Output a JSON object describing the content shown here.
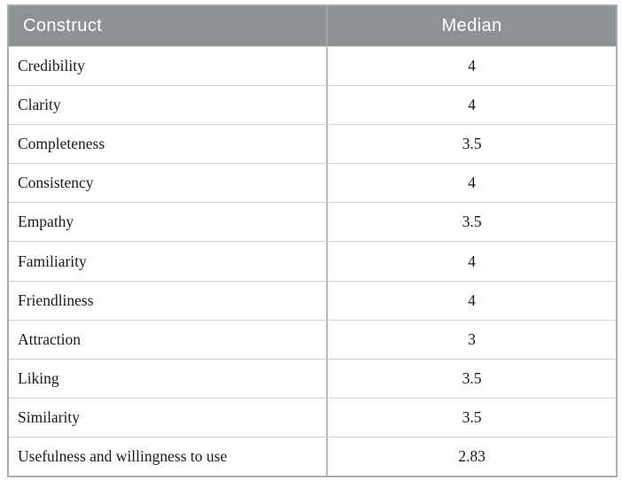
{
  "table": {
    "columns": [
      {
        "key": "construct",
        "label": "Construct",
        "align": "left"
      },
      {
        "key": "median",
        "label": "Median",
        "align": "center"
      }
    ],
    "rows": [
      {
        "construct": "Credibility",
        "median": "4"
      },
      {
        "construct": "Clarity",
        "median": "4"
      },
      {
        "construct": "Completeness",
        "median": "3.5"
      },
      {
        "construct": "Consistency",
        "median": "4"
      },
      {
        "construct": "Empathy",
        "median": "3.5"
      },
      {
        "construct": "Familiarity",
        "median": "4"
      },
      {
        "construct": "Friendliness",
        "median": "4"
      },
      {
        "construct": "Attraction",
        "median": "3"
      },
      {
        "construct": "Liking",
        "median": "3.5"
      },
      {
        "construct": "Similarity",
        "median": "3.5"
      },
      {
        "construct": "Usefulness and willingness to use",
        "median": "2.83"
      }
    ]
  },
  "colors": {
    "header_bg": "#8d9295",
    "header_text": "#ffffff",
    "header_divider": "#a2a6a9",
    "outer_border": "#a9acae",
    "column_divider": "#b7b9bb",
    "row_divider": "#cfd1d2",
    "body_text": "#1a1a1a",
    "body_bg": "#ffffff"
  },
  "chart_data": {
    "type": "table",
    "title": "",
    "columns": [
      "Construct",
      "Median"
    ],
    "rows": [
      [
        "Credibility",
        4
      ],
      [
        "Clarity",
        4
      ],
      [
        "Completeness",
        3.5
      ],
      [
        "Consistency",
        4
      ],
      [
        "Empathy",
        3.5
      ],
      [
        "Familiarity",
        4
      ],
      [
        "Friendliness",
        4
      ],
      [
        "Attraction",
        3
      ],
      [
        "Liking",
        3.5
      ],
      [
        "Similarity",
        3.5
      ],
      [
        "Usefulness and willingness to use",
        2.83
      ]
    ]
  }
}
